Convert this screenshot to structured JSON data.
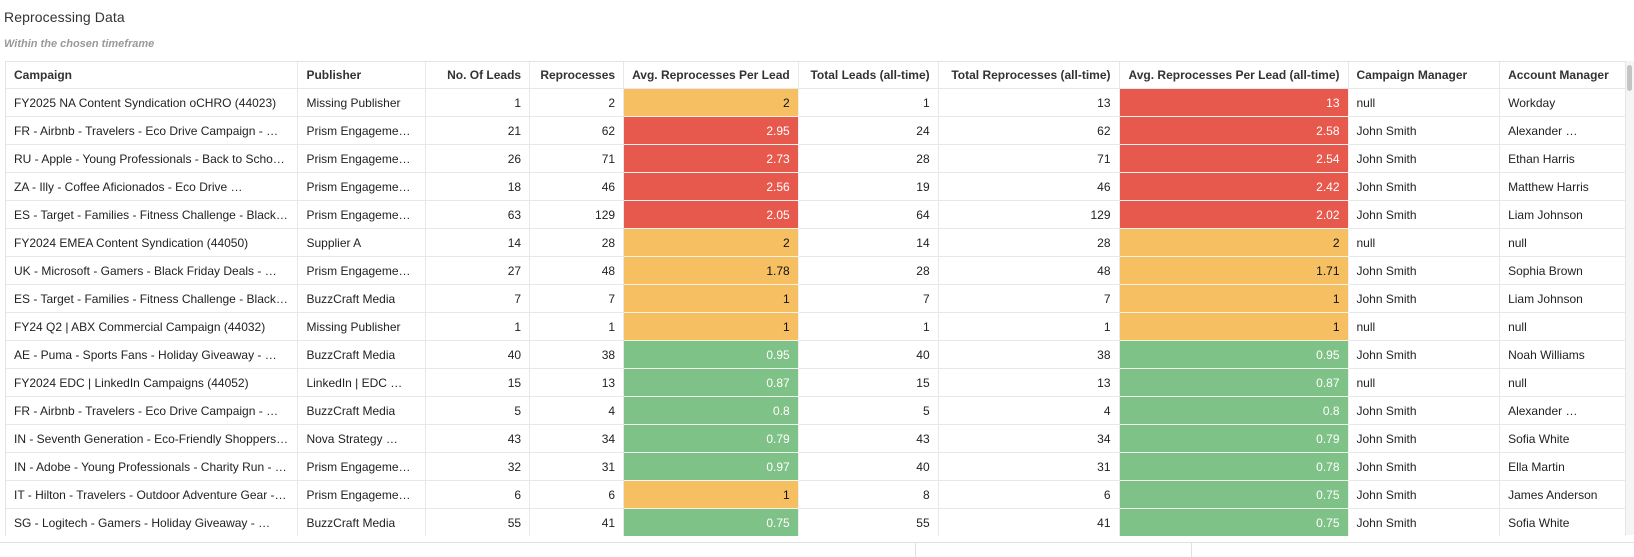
{
  "panel": {
    "title": "Reprocessing Data",
    "subtitle": "Within the chosen timeframe"
  },
  "colors": {
    "high": "#e8594d",
    "medium": "#f5bf62",
    "low": "#7fc287"
  },
  "table": {
    "headers": [
      "Campaign",
      "Publisher",
      "No. Of Leads",
      "Reprocesses",
      "Avg. Reprocesses Per Lead",
      "Total Leads (all-time)",
      "Total Reprocesses (all-time)",
      "Avg. Reprocesses Per Lead (all-time)",
      "Campaign Manager",
      "Account Manager"
    ],
    "rows": [
      {
        "campaign": "FY2025 NA Content Syndication oCHRO (44023)",
        "publisher": "Missing Publisher",
        "leads": "1",
        "reprocesses": "2",
        "avg": "2",
        "avg_level": "orange",
        "total_leads": "1",
        "total_reprocesses": "13",
        "avg_all": "13",
        "avg_all_level": "red",
        "campaign_manager": "null",
        "account_manager": "Workday"
      },
      {
        "campaign": "FR - Airbnb - Travelers - Eco Drive Campaign - …",
        "publisher": "Prism Engageme…",
        "leads": "21",
        "reprocesses": "62",
        "avg": "2.95",
        "avg_level": "red",
        "total_leads": "24",
        "total_reprocesses": "62",
        "avg_all": "2.58",
        "avg_all_level": "red",
        "campaign_manager": "John Smith",
        "account_manager": "Alexander …"
      },
      {
        "campaign": "RU - Apple - Young Professionals - Back to Scho…",
        "publisher": "Prism Engageme…",
        "leads": "26",
        "reprocesses": "71",
        "avg": "2.73",
        "avg_level": "red",
        "total_leads": "28",
        "total_reprocesses": "71",
        "avg_all": "2.54",
        "avg_all_level": "red",
        "campaign_manager": "John Smith",
        "account_manager": "Ethan Harris"
      },
      {
        "campaign": "ZA - Illy - Coffee Aficionados - Eco Drive …",
        "publisher": "Prism Engageme…",
        "leads": "18",
        "reprocesses": "46",
        "avg": "2.56",
        "avg_level": "red",
        "total_leads": "19",
        "total_reprocesses": "46",
        "avg_all": "2.42",
        "avg_all_level": "red",
        "campaign_manager": "John Smith",
        "account_manager": "Matthew Harris"
      },
      {
        "campaign": "ES - Target - Families - Fitness Challenge - Black…",
        "publisher": "Prism Engageme…",
        "leads": "63",
        "reprocesses": "129",
        "avg": "2.05",
        "avg_level": "red",
        "total_leads": "64",
        "total_reprocesses": "129",
        "avg_all": "2.02",
        "avg_all_level": "red",
        "campaign_manager": "John Smith",
        "account_manager": "Liam Johnson"
      },
      {
        "campaign": "FY2024  EMEA Content Syndication (44050)",
        "publisher": "Supplier A",
        "leads": "14",
        "reprocesses": "28",
        "avg": "2",
        "avg_level": "orange",
        "total_leads": "14",
        "total_reprocesses": "28",
        "avg_all": "2",
        "avg_all_level": "orange",
        "campaign_manager": "null",
        "account_manager": "null"
      },
      {
        "campaign": "UK - Microsoft - Gamers - Black Friday Deals - …",
        "publisher": "Prism Engageme…",
        "leads": "27",
        "reprocesses": "48",
        "avg": "1.78",
        "avg_level": "orange",
        "total_leads": "28",
        "total_reprocesses": "48",
        "avg_all": "1.71",
        "avg_all_level": "orange",
        "campaign_manager": "John Smith",
        "account_manager": "Sophia Brown"
      },
      {
        "campaign": "ES - Target - Families - Fitness Challenge - Black…",
        "publisher": "BuzzCraft Media",
        "leads": "7",
        "reprocesses": "7",
        "avg": "1",
        "avg_level": "orange",
        "total_leads": "7",
        "total_reprocesses": "7",
        "avg_all": "1",
        "avg_all_level": "orange",
        "campaign_manager": "John Smith",
        "account_manager": "Liam Johnson"
      },
      {
        "campaign": "FY24 Q2 |  ABX Commercial Campaign (44032)",
        "publisher": "Missing Publisher",
        "leads": "1",
        "reprocesses": "1",
        "avg": "1",
        "avg_level": "orange",
        "total_leads": "1",
        "total_reprocesses": "1",
        "avg_all": "1",
        "avg_all_level": "orange",
        "campaign_manager": "null",
        "account_manager": "null"
      },
      {
        "campaign": "AE - Puma - Sports Fans - Holiday Giveaway - …",
        "publisher": "BuzzCraft Media",
        "leads": "40",
        "reprocesses": "38",
        "avg": "0.95",
        "avg_level": "green",
        "total_leads": "40",
        "total_reprocesses": "38",
        "avg_all": "0.95",
        "avg_all_level": "green",
        "campaign_manager": "John Smith",
        "account_manager": "Noah Williams"
      },
      {
        "campaign": "FY2024 EDC | LinkedIn Campaigns (44052)",
        "publisher": "LinkedIn | EDC …",
        "leads": "15",
        "reprocesses": "13",
        "avg": "0.87",
        "avg_level": "green",
        "total_leads": "15",
        "total_reprocesses": "13",
        "avg_all": "0.87",
        "avg_all_level": "green",
        "campaign_manager": "null",
        "account_manager": "null"
      },
      {
        "campaign": "FR - Airbnb - Travelers - Eco Drive Campaign - …",
        "publisher": "BuzzCraft Media",
        "leads": "5",
        "reprocesses": "4",
        "avg": "0.8",
        "avg_level": "green",
        "total_leads": "5",
        "total_reprocesses": "4",
        "avg_all": "0.8",
        "avg_all_level": "green",
        "campaign_manager": "John Smith",
        "account_manager": "Alexander …"
      },
      {
        "campaign": "IN - Seventh Generation - Eco-Friendly Shoppers…",
        "publisher": "Nova Strategy …",
        "leads": "43",
        "reprocesses": "34",
        "avg": "0.79",
        "avg_level": "green",
        "total_leads": "43",
        "total_reprocesses": "34",
        "avg_all": "0.79",
        "avg_all_level": "green",
        "campaign_manager": "John Smith",
        "account_manager": "Sofia White"
      },
      {
        "campaign": "IN - Adobe - Young Professionals - Charity Run - …",
        "publisher": "Prism Engageme…",
        "leads": "32",
        "reprocesses": "31",
        "avg": "0.97",
        "avg_level": "green",
        "total_leads": "40",
        "total_reprocesses": "31",
        "avg_all": "0.78",
        "avg_all_level": "green",
        "campaign_manager": "John Smith",
        "account_manager": "Ella Martin"
      },
      {
        "campaign": "IT - Hilton - Travelers - Outdoor Adventure Gear -…",
        "publisher": "Prism Engageme…",
        "leads": "6",
        "reprocesses": "6",
        "avg": "1",
        "avg_level": "orange",
        "total_leads": "8",
        "total_reprocesses": "6",
        "avg_all": "0.75",
        "avg_all_level": "green",
        "campaign_manager": "John Smith",
        "account_manager": "James Anderson"
      },
      {
        "campaign": "SG - Logitech - Gamers - Holiday Giveaway - …",
        "publisher": "BuzzCraft Media",
        "leads": "55",
        "reprocesses": "41",
        "avg": "0.75",
        "avg_level": "green",
        "total_leads": "55",
        "total_reprocesses": "41",
        "avg_all": "0.75",
        "avg_all_level": "green",
        "campaign_manager": "John Smith",
        "account_manager": "Sofia White"
      }
    ]
  }
}
